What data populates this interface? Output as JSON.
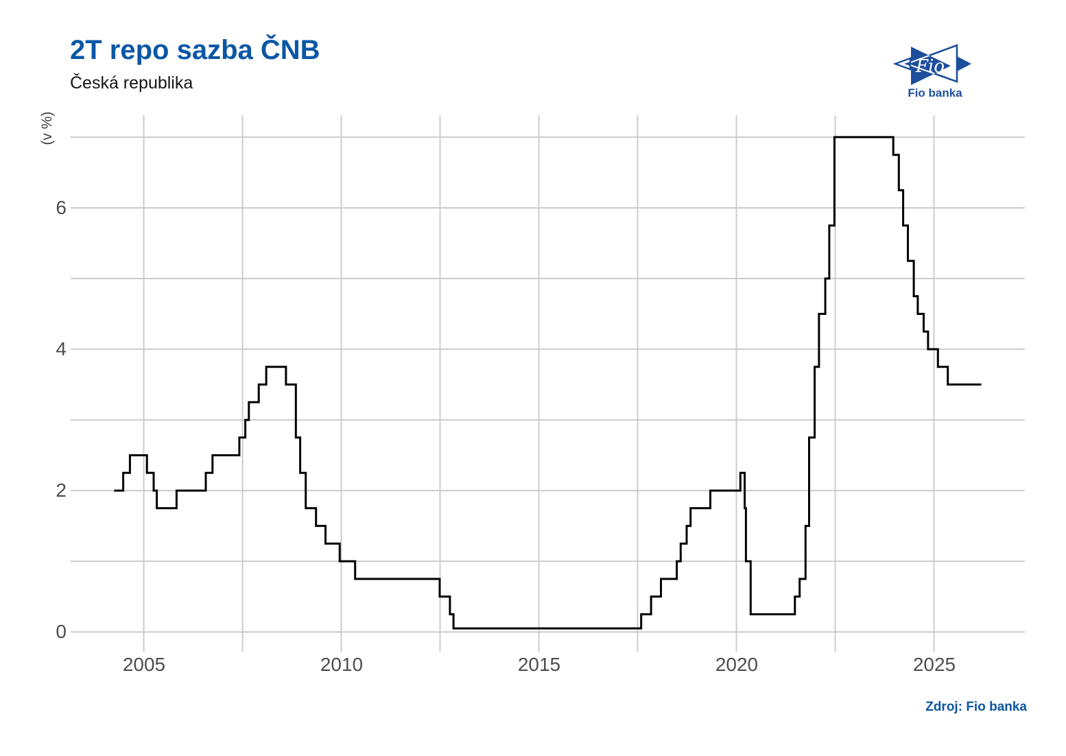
{
  "header": {
    "title": "2T repo sazba ČNB",
    "subtitle": "Česká republika"
  },
  "logo": {
    "brand": "Fio",
    "caption": "Fio banka"
  },
  "source": {
    "label": "Zdroj: Fio banka"
  },
  "colors": {
    "title_blue": "#0b57a5",
    "logo_navy": "#1d4f9d",
    "line": "#000000",
    "grid": "#cccccc",
    "tick_label": "#4d4d4d",
    "axis_title": "#3d3d3d"
  },
  "chart_data": {
    "type": "line",
    "step": "after",
    "title": "2T repo sazba ČNB",
    "subtitle": "Česká republika",
    "ylabel": "(v %)",
    "y_unit": "%",
    "x_unit": "year",
    "grid": true,
    "legend": false,
    "x_ticks": [
      2005,
      2010,
      2015,
      2020,
      2025
    ],
    "y_ticks": [
      0,
      2,
      4,
      6
    ],
    "x_gridline_step_years": 2.5,
    "y_gridline_step": 1,
    "xlim": [
      2003.15,
      2027.3
    ],
    "ylim": [
      -0.28,
      7.31
    ],
    "series": [
      {
        "name": "2T repo sazba ČNB",
        "points": [
          [
            2004.25,
            2.0
          ],
          [
            2004.48,
            2.25
          ],
          [
            2004.65,
            2.5
          ],
          [
            2005.08,
            2.25
          ],
          [
            2005.25,
            2.0
          ],
          [
            2005.33,
            1.75
          ],
          [
            2005.83,
            2.0
          ],
          [
            2006.57,
            2.25
          ],
          [
            2006.74,
            2.5
          ],
          [
            2007.42,
            2.75
          ],
          [
            2007.57,
            3.0
          ],
          [
            2007.66,
            3.25
          ],
          [
            2007.91,
            3.5
          ],
          [
            2008.1,
            3.75
          ],
          [
            2008.6,
            3.5
          ],
          [
            2008.85,
            2.75
          ],
          [
            2008.96,
            2.25
          ],
          [
            2009.1,
            1.75
          ],
          [
            2009.36,
            1.5
          ],
          [
            2009.6,
            1.25
          ],
          [
            2009.96,
            1.0
          ],
          [
            2010.35,
            0.75
          ],
          [
            2012.49,
            0.5
          ],
          [
            2012.75,
            0.25
          ],
          [
            2012.84,
            0.05
          ],
          [
            2017.59,
            0.25
          ],
          [
            2017.84,
            0.5
          ],
          [
            2018.09,
            0.75
          ],
          [
            2018.49,
            1.0
          ],
          [
            2018.59,
            1.25
          ],
          [
            2018.74,
            1.5
          ],
          [
            2018.84,
            1.75
          ],
          [
            2019.34,
            2.0
          ],
          [
            2020.1,
            2.25
          ],
          [
            2020.21,
            1.75
          ],
          [
            2020.24,
            1.0
          ],
          [
            2020.36,
            0.25
          ],
          [
            2021.48,
            0.5
          ],
          [
            2021.6,
            0.75
          ],
          [
            2021.75,
            1.5
          ],
          [
            2021.84,
            2.75
          ],
          [
            2021.98,
            3.75
          ],
          [
            2022.09,
            4.5
          ],
          [
            2022.25,
            5.0
          ],
          [
            2022.35,
            5.75
          ],
          [
            2022.48,
            7.0
          ],
          [
            2023.97,
            6.75
          ],
          [
            2024.11,
            6.25
          ],
          [
            2024.22,
            5.75
          ],
          [
            2024.34,
            5.25
          ],
          [
            2024.49,
            4.75
          ],
          [
            2024.59,
            4.5
          ],
          [
            2024.74,
            4.25
          ],
          [
            2024.85,
            4.0
          ],
          [
            2025.1,
            3.75
          ],
          [
            2025.35,
            3.5
          ],
          [
            2026.2,
            3.5
          ]
        ]
      }
    ]
  }
}
